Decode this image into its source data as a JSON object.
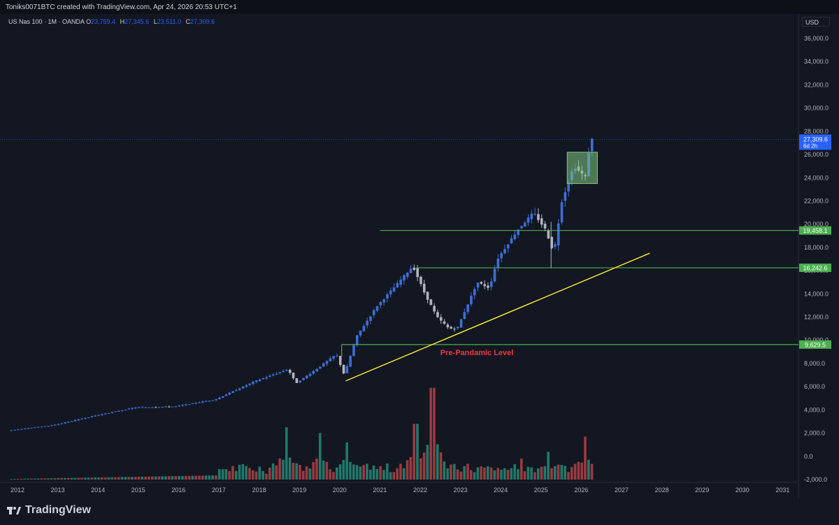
{
  "header": {
    "credit": "Toniks0071BTC created with TradingView.com, Apr 24, 2026 20:53 UTC+1"
  },
  "symbol": {
    "name": "US Nas 100 · 1M · OANDA",
    "open_label": "O",
    "open": "23,759.4",
    "high_label": "H",
    "high": "27,345.6",
    "low_label": "L",
    "low": "23,511.0",
    "close_label": "C",
    "close": "27,309.6"
  },
  "currency": "USD",
  "price_tag": {
    "price": "27,309.6",
    "countdown": "6d 2h"
  },
  "levels": [
    {
      "label": "19,458.1",
      "value": 19458.1,
      "color": "#4caf50"
    },
    {
      "label": "16,242.6",
      "value": 16242.6,
      "color": "#4caf50"
    },
    {
      "label": "9,629.5",
      "value": 9629.5,
      "color": "#4caf50"
    }
  ],
  "annotation": {
    "text": "Pre-Pandamic Level",
    "color": "#f23645"
  },
  "colors": {
    "up": "#3d6fd6",
    "down": "#b2b5be",
    "vol_up": "#22796a",
    "vol_down": "#9c3a40",
    "trend": "#ffeb3b",
    "level": "#4caf50"
  },
  "logo": {
    "text": "TradingView"
  },
  "chart_data": {
    "type": "candlestick",
    "y_ticks": [
      "36,000.0",
      "34,000.0",
      "32,000.0",
      "30,000.0",
      "28,000.0",
      "26,000.0",
      "24,000.0",
      "22,000.0",
      "20,000.0",
      "18,000.0",
      "16,000.0",
      "14,000.0",
      "12,000.0",
      "10,000.0",
      "8,000.0",
      "6,000.0",
      "4,000.0",
      "2,000.0",
      "0.0",
      "-2,000.0"
    ],
    "x_ticks": [
      "2012",
      "2013",
      "2014",
      "2015",
      "2016",
      "2017",
      "2018",
      "2019",
      "2020",
      "2021",
      "2022",
      "2023",
      "2024",
      "2025",
      "2026",
      "2027",
      "2028",
      "2029",
      "2030",
      "2031"
    ],
    "ylim": [
      -2000,
      36000
    ],
    "price_path": [
      [
        2011.8,
        2200
      ],
      [
        2013.0,
        2700
      ],
      [
        2014.0,
        3500
      ],
      [
        2015.0,
        4200
      ],
      [
        2016.0,
        4300
      ],
      [
        2017.0,
        4900
      ],
      [
        2018.0,
        6500
      ],
      [
        2018.8,
        7500
      ],
      [
        2019.0,
        6300
      ],
      [
        2019.5,
        7500
      ],
      [
        2020.0,
        8800
      ],
      [
        2020.2,
        7000
      ],
      [
        2020.5,
        10300
      ],
      [
        2021.0,
        12900
      ],
      [
        2021.5,
        14800
      ],
      [
        2021.9,
        16400
      ],
      [
        2022.2,
        14000
      ],
      [
        2022.5,
        12000
      ],
      [
        2022.8,
        11000
      ],
      [
        2023.0,
        11000
      ],
      [
        2023.5,
        15000
      ],
      [
        2023.8,
        14500
      ],
      [
        2024.0,
        17000
      ],
      [
        2024.5,
        19500
      ],
      [
        2024.9,
        21000
      ],
      [
        2025.2,
        19500
      ],
      [
        2025.4,
        17500
      ],
      [
        2025.6,
        22000
      ],
      [
        2025.9,
        25000
      ],
      [
        2026.2,
        24000
      ],
      [
        2026.3,
        27309.6
      ]
    ],
    "volume_peaks": [
      [
        2018.7,
        4500
      ],
      [
        2019.5,
        4000
      ],
      [
        2020.2,
        3200
      ],
      [
        2021.9,
        4800
      ],
      [
        2022.3,
        7900
      ],
      [
        2024.5,
        1800
      ],
      [
        2025.2,
        2400
      ],
      [
        2026.1,
        3700
      ]
    ],
    "trendline": [
      [
        2020.15,
        6500
      ],
      [
        2027.7,
        17500
      ]
    ],
    "consolidation_box": {
      "x": [
        2025.65,
        2026.4
      ],
      "y": [
        23500,
        26200
      ]
    }
  }
}
